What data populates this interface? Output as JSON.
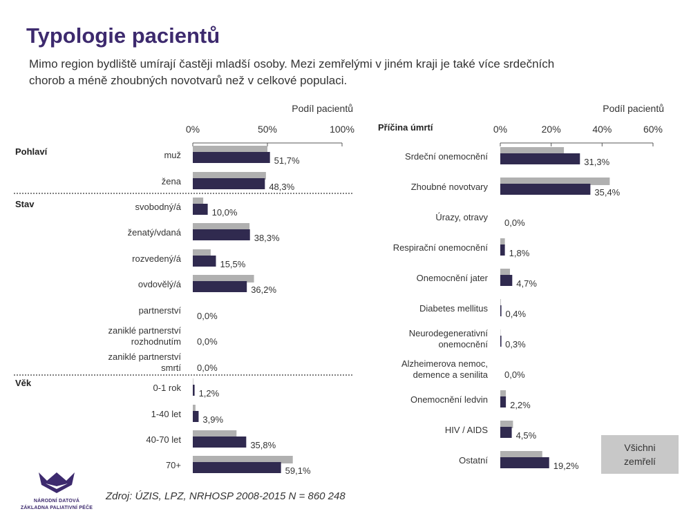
{
  "title": "Typologie pacientů",
  "subtitle_lines": [
    "Mimo region bydliště umírají častěji mladší osoby. Mezi zemřelými v jiném kraji je také více srdečních",
    "chorob a méně zhoubných novotvarů než v celkové populaci."
  ],
  "source": "Zdroj: ÚZIS, LPZ, NRHOSP 2008-2015 N = 860 248",
  "legend_label_lines": [
    "Všichni",
    "zemřelí"
  ],
  "logo_lines": [
    "NÁRODNÍ DATOVÁ",
    "ZÁKLADNA PALIATIVNÍ PÉČE"
  ],
  "colors": {
    "primary": "#302a4f",
    "reference": "#b0b0b0",
    "title": "#3d2a6e"
  },
  "chart_data": [
    {
      "type": "bar",
      "orientation": "horizontal",
      "axis_title": "Podíl pacientů",
      "xlim": [
        0,
        100
      ],
      "ticks": [
        "0%",
        "50%",
        "100%"
      ],
      "tick_values": [
        0,
        50,
        100
      ],
      "groups": [
        {
          "name": "Pohlaví",
          "rows": [
            {
              "label": [
                "muž"
              ],
              "value": 51.7,
              "value_label": "51,7%",
              "reference": 50
            },
            {
              "label": [
                "žena"
              ],
              "value": 48.3,
              "value_label": "48,3%",
              "reference": 49
            }
          ]
        },
        {
          "name": "Stav",
          "rows": [
            {
              "label": [
                "svobodný/á"
              ],
              "value": 10.0,
              "value_label": "10,0%",
              "reference": 7
            },
            {
              "label": [
                "ženatý/vdaná"
              ],
              "value": 38.3,
              "value_label": "38,3%",
              "reference": 38
            },
            {
              "label": [
                "rozvedený/á"
              ],
              "value": 15.5,
              "value_label": "15,5%",
              "reference": 12
            },
            {
              "label": [
                "ovdovělý/á"
              ],
              "value": 36.2,
              "value_label": "36,2%",
              "reference": 41
            },
            {
              "label": [
                "partnerství"
              ],
              "value": 0.0,
              "value_label": "0,0%",
              "reference": 0
            },
            {
              "label": [
                "zaniklé partnerství",
                "rozhodnutím"
              ],
              "value": 0.0,
              "value_label": "0,0%",
              "reference": 0
            },
            {
              "label": [
                "zaniklé partnerství",
                "smrtí"
              ],
              "value": 0.0,
              "value_label": "0,0%",
              "reference": 0
            }
          ]
        },
        {
          "name": "Věk",
          "rows": [
            {
              "label": [
                "0-1 rok"
              ],
              "value": 1.2,
              "value_label": "1,2%",
              "reference": 0.3
            },
            {
              "label": [
                "1-40 let"
              ],
              "value": 3.9,
              "value_label": "3,9%",
              "reference": 1.8
            },
            {
              "label": [
                "40-70 let"
              ],
              "value": 35.8,
              "value_label": "35,8%",
              "reference": 29.3
            },
            {
              "label": [
                "70+"
              ],
              "value": 59.1,
              "value_label": "59,1%",
              "reference": 67
            }
          ]
        }
      ]
    },
    {
      "type": "bar",
      "orientation": "horizontal",
      "axis_title": "Podíl pacientů",
      "category_title": "Příčina úmrtí",
      "xlim": [
        0,
        60
      ],
      "ticks": [
        "0%",
        "20%",
        "40%",
        "60%"
      ],
      "tick_values": [
        0,
        20,
        40,
        60
      ],
      "rows": [
        {
          "label": [
            "Srdeční onemocnění"
          ],
          "value": 31.3,
          "value_label": "31,3%",
          "reference": 25
        },
        {
          "label": [
            "Zhoubné novotvary"
          ],
          "value": 35.4,
          "value_label": "35,4%",
          "reference": 43
        },
        {
          "label": [
            "Úrazy, otravy"
          ],
          "value": 0.0,
          "value_label": "0,0%",
          "reference": 0
        },
        {
          "label": [
            "Respirační onemocnění"
          ],
          "value": 1.8,
          "value_label": "1,8%",
          "reference": 1.8
        },
        {
          "label": [
            "Onemocnění jater"
          ],
          "value": 4.7,
          "value_label": "4,7%",
          "reference": 3.8
        },
        {
          "label": [
            "Diabetes mellitus"
          ],
          "value": 0.4,
          "value_label": "0,4%",
          "reference": 0.2
        },
        {
          "label": [
            "Neurodegenerativní",
            "onemocnění"
          ],
          "value": 0.3,
          "value_label": "0,3%",
          "reference": 0.1
        },
        {
          "label": [
            "Alzheimerova nemoc,",
            "demence a senilita"
          ],
          "value": 0.0,
          "value_label": "0,0%",
          "reference": 0
        },
        {
          "label": [
            "Onemocnění ledvin"
          ],
          "value": 2.2,
          "value_label": "2,2%",
          "reference": 2.2
        },
        {
          "label": [
            "HIV / AIDS"
          ],
          "value": 4.5,
          "value_label": "4,5%",
          "reference": 5
        },
        {
          "label": [
            "Ostatní"
          ],
          "value": 19.2,
          "value_label": "19,2%",
          "reference": 16.5
        }
      ]
    }
  ]
}
